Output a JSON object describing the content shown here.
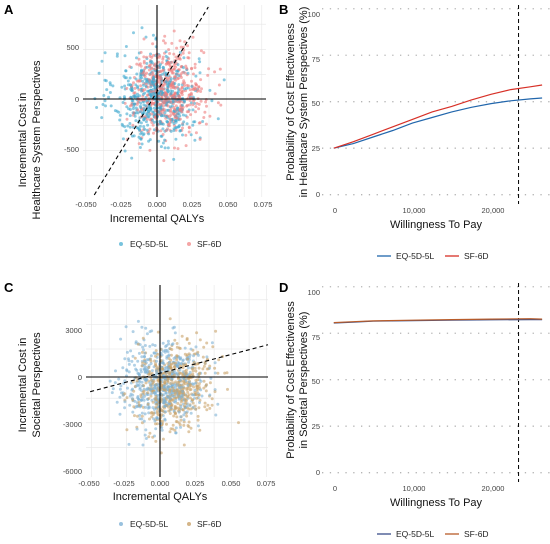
{
  "colors": {
    "eq5d_scatter": "#3fa9cf",
    "sf6d_scatter": "#ef7f7f",
    "eq5d_scatter_c": "#7fb2d6",
    "sf6d_scatter_c": "#c9a36a",
    "eq5d_line": "#2166ac",
    "sf6d_line": "#d73027",
    "eq5d_line_d": "#3a4f8a",
    "sf6d_line_d": "#b85c2a",
    "grid": "#e6e6e6"
  },
  "panels": {
    "A": {
      "letter": "A",
      "ylabel_line1": "Incremental Cost in",
      "ylabel_line2": "Healthcare System Perspectives",
      "xlabel": "Incremental QALYs",
      "xticks": [
        "-0.050",
        "-0.025",
        "0.000",
        "0.025",
        "0.050",
        "0.075"
      ],
      "yticks": [
        "500",
        "0",
        "-500"
      ],
      "legend": [
        "EQ-5D-5L",
        "SF-6D"
      ]
    },
    "B": {
      "letter": "B",
      "ylabel_line1": "Probability of Cost Effectiveness",
      "ylabel_line2": "in Healthcare System Perspectives (%)",
      "xlabel": "Willingness To Pay",
      "xticks": [
        "0",
        "10,000",
        "20,000"
      ],
      "yticks": [
        "100",
        "75",
        "50",
        "25",
        "0"
      ],
      "legend": [
        "EQ-5D-5L",
        "SF-6D"
      ]
    },
    "C": {
      "letter": "C",
      "ylabel_line1": "Incremental Cost in",
      "ylabel_line2": "Societal Perspectives",
      "xlabel": "Incremental QALYs",
      "xticks": [
        "-0.050",
        "-0.025",
        "0.000",
        "0.025",
        "0.050",
        "0.075"
      ],
      "yticks": [
        "3000",
        "0",
        "-3000",
        "-6000"
      ],
      "legend": [
        "EQ-5D-5L",
        "SF-6D"
      ]
    },
    "D": {
      "letter": "D",
      "ylabel_line1": "Probability of Cost Effectiveness",
      "ylabel_line2": "in Societal Perspectives (%)",
      "xlabel": "Willingness To Pay",
      "xticks": [
        "0",
        "10,000",
        "20,000"
      ],
      "yticks": [
        "100",
        "75",
        "50",
        "25",
        "0"
      ],
      "legend": [
        "EQ-5D-5L",
        "SF-6D"
      ]
    }
  },
  "chart_data": [
    {
      "panel": "A",
      "type": "scatter",
      "xlabel": "Incremental QALYs",
      "ylabel": "Incremental Cost in Healthcare System Perspectives",
      "xlim": [
        -0.052,
        0.078
      ],
      "ylim": [
        -960,
        940
      ],
      "threshold_line": {
        "x": [
          -0.044,
          0.037
        ],
        "y": [
          -940,
          920
        ]
      },
      "series": [
        {
          "name": "EQ-5D-5L",
          "cx": 0.0,
          "cy": 20,
          "sx": 0.015,
          "sy": 230,
          "n": 550
        },
        {
          "name": "SF-6D",
          "cx": 0.008,
          "cy": 90,
          "sx": 0.013,
          "sy": 210,
          "n": 550
        }
      ],
      "legend": "bottom"
    },
    {
      "panel": "B",
      "type": "line",
      "xlabel": "Willingness To Pay",
      "ylabel": "Probability of Cost Effectiveness in Healthcare System Perspectives (%)",
      "xlim": [
        -1500,
        27500
      ],
      "ylim": [
        -5,
        102
      ],
      "vline": 23500,
      "series": [
        {
          "name": "EQ-5D-5L",
          "x": [
            0,
            2500,
            5000,
            7500,
            10000,
            12500,
            15000,
            17500,
            20000,
            22500,
            25000,
            26500
          ],
          "y": [
            25,
            27.5,
            31,
            34.5,
            38.5,
            41.5,
            44.5,
            47,
            49,
            50.5,
            51.5,
            52
          ]
        },
        {
          "name": "SF-6D",
          "x": [
            0,
            2500,
            5000,
            7500,
            10000,
            12500,
            15000,
            17500,
            20000,
            22500,
            25000,
            26500
          ],
          "y": [
            25,
            28.5,
            32.5,
            36.5,
            40.5,
            44.5,
            47.5,
            51,
            54,
            56.5,
            58,
            59
          ]
        }
      ],
      "legend": "bottom"
    },
    {
      "panel": "C",
      "type": "scatter",
      "xlabel": "Incremental QALYs",
      "ylabel": "Incremental Cost in Societal Perspectives",
      "xlim": [
        -0.054,
        0.076
      ],
      "ylim": [
        -6300,
        5400
      ],
      "threshold_line": {
        "x": [
          -0.051,
          0.076
        ],
        "y": [
          -1100,
          1760
        ]
      },
      "series": [
        {
          "name": "EQ-5D-5L",
          "cx": 0.0,
          "cy": -600,
          "sx": 0.015,
          "sy": 1350,
          "n": 550
        },
        {
          "name": "SF-6D",
          "cx": 0.008,
          "cy": -800,
          "sx": 0.013,
          "sy": 1250,
          "n": 550
        }
      ],
      "legend": "bottom"
    },
    {
      "panel": "D",
      "type": "line",
      "xlabel": "Willingness To Pay",
      "ylabel": "Probability of Cost Effectiveness in Societal Perspectives (%)",
      "xlim": [
        -1500,
        27500
      ],
      "ylim": [
        -5,
        102
      ],
      "vline": 23500,
      "series": [
        {
          "name": "EQ-5D-5L",
          "x": [
            0,
            2500,
            5000,
            10000,
            15000,
            20000,
            25000,
            26500
          ],
          "y": [
            80.5,
            81,
            81.5,
            81.8,
            82,
            82.2,
            82.3,
            82.3
          ]
        },
        {
          "name": "SF-6D",
          "x": [
            0,
            2500,
            5000,
            10000,
            15000,
            20000,
            25000,
            26500
          ],
          "y": [
            80.7,
            81.2,
            81.6,
            82,
            82.3,
            82.6,
            82.8,
            82.6
          ]
        }
      ],
      "legend": "bottom"
    }
  ]
}
